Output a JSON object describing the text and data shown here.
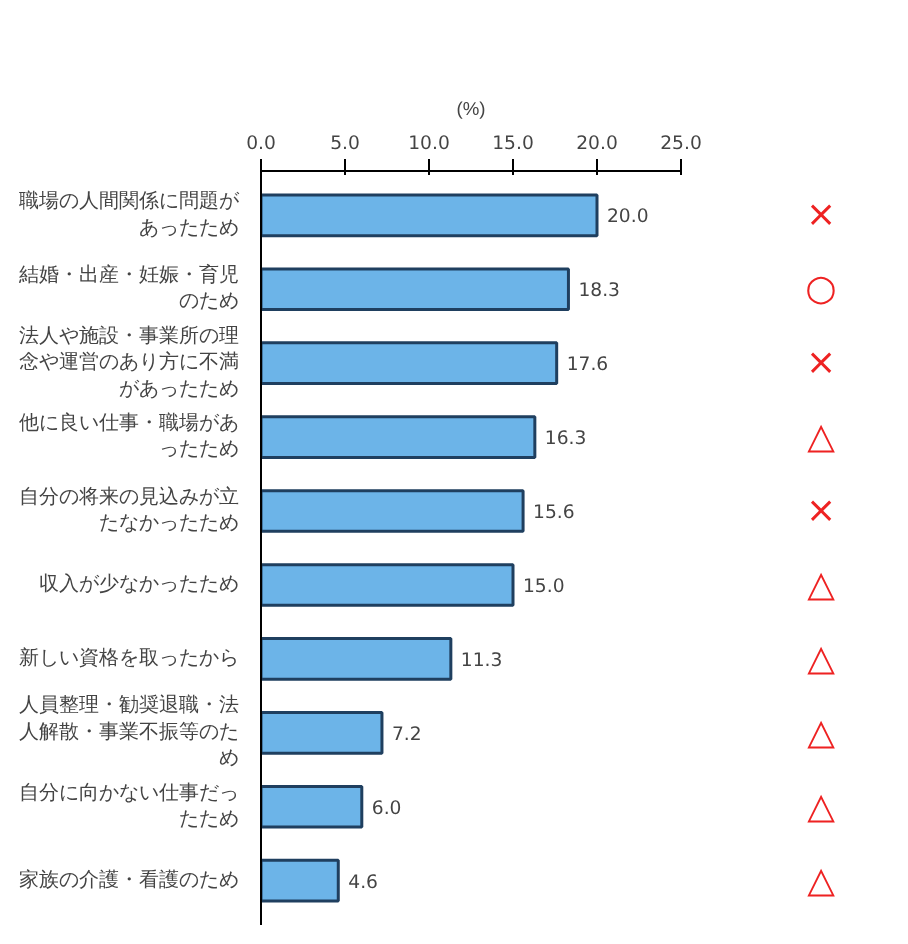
{
  "chart_data": {
    "type": "bar",
    "orientation": "horizontal",
    "xlabel": "(%)",
    "categories": [
      "職場の人間関係に問題があったため",
      "結婚・出産・妊娠・育児のため",
      "法人や施設・事業所の理念や運営のあり方に不満があったため",
      "他に良い仕事・職場があったため",
      "自分の将来の見込みが立たなかったため",
      "収入が少なかったため",
      "新しい資格を取ったから",
      "人員整理・勧奨退職・法人解散・事業不振等のため",
      "自分に向かない仕事だったため",
      "家族の介護・看護のため"
    ],
    "values": [
      20.0,
      18.3,
      17.6,
      16.3,
      15.6,
      15.0,
      11.3,
      7.2,
      6.0,
      4.6
    ],
    "value_labels": [
      "20.0",
      "18.3",
      "17.6",
      "16.3",
      "15.6",
      "15.0",
      "11.3",
      "7.2",
      "6.0",
      "4.6"
    ],
    "color": "#6cb4e8",
    "xlim": [
      0,
      25
    ],
    "xticks": [
      {
        "value": 0,
        "label": "0.0"
      },
      {
        "value": 5,
        "label": "5.0"
      },
      {
        "value": 10,
        "label": "10.0"
      },
      {
        "value": 15,
        "label": "15.0"
      },
      {
        "value": 20,
        "label": "20.0"
      },
      {
        "value": 25,
        "label": "25.0"
      }
    ],
    "annotations": [
      "×",
      "○",
      "×",
      "△",
      "×",
      "△",
      "△",
      "△",
      "△",
      "△"
    ],
    "grid": false
  }
}
